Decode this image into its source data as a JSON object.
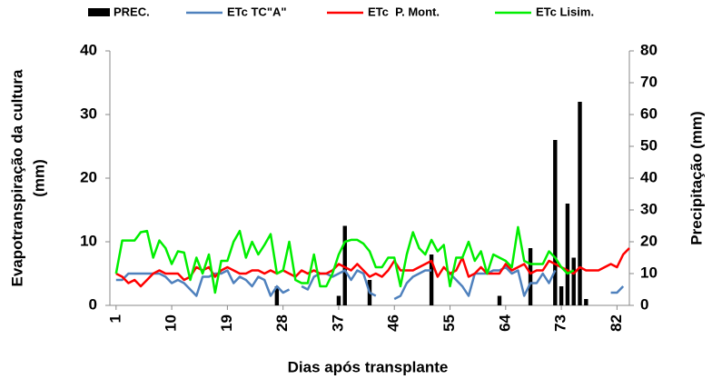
{
  "chart_data": {
    "type": "bar-line",
    "xlabel": "Dias após transplante",
    "ylabel": [
      "Evapotranspiração da cultura",
      "(mm)"
    ],
    "y2label": "Precipitação (mm)",
    "x": [
      1,
      2,
      3,
      4,
      5,
      6,
      7,
      8,
      9,
      10,
      11,
      12,
      13,
      14,
      15,
      16,
      17,
      18,
      19,
      20,
      21,
      22,
      23,
      24,
      25,
      26,
      27,
      28,
      29,
      30,
      31,
      32,
      33,
      34,
      35,
      36,
      37,
      38,
      39,
      40,
      41,
      42,
      43,
      44,
      45,
      46,
      47,
      48,
      49,
      50,
      51,
      52,
      53,
      54,
      55,
      56,
      57,
      58,
      59,
      60,
      61,
      62,
      63,
      64,
      65,
      66,
      67,
      68,
      69,
      70,
      71,
      72,
      73,
      74,
      75,
      76,
      77,
      78,
      79,
      80,
      81,
      82,
      83,
      84
    ],
    "xlim": [
      0,
      84
    ],
    "xticks": [
      1,
      10,
      19,
      28,
      37,
      46,
      55,
      64,
      73,
      82
    ],
    "ylim": [
      0,
      40
    ],
    "yticks": [
      0,
      10,
      20,
      30,
      40
    ],
    "y2lim": [
      0,
      80
    ],
    "y2ticks": [
      0,
      10,
      20,
      30,
      40,
      50,
      60,
      70,
      80
    ],
    "series": [
      {
        "name": "PREC.",
        "color": "#000000",
        "axis": "y2",
        "kind": "bar",
        "values": [
          null,
          null,
          null,
          null,
          null,
          null,
          null,
          null,
          null,
          null,
          null,
          null,
          null,
          null,
          null,
          null,
          null,
          null,
          null,
          null,
          null,
          null,
          null,
          null,
          null,
          null,
          6,
          null,
          null,
          null,
          null,
          null,
          null,
          null,
          null,
          null,
          3,
          25,
          null,
          null,
          null,
          8,
          null,
          null,
          null,
          null,
          null,
          null,
          null,
          null,
          null,
          16,
          null,
          null,
          null,
          null,
          null,
          null,
          null,
          null,
          null,
          null,
          3,
          null,
          null,
          null,
          null,
          18,
          null,
          null,
          null,
          52,
          6,
          32,
          15,
          64,
          2,
          null,
          null,
          null,
          null,
          null,
          null,
          null
        ]
      },
      {
        "name": "ETc TC\"A\"",
        "color": "#4f81bd",
        "kind": "line",
        "values": [
          4,
          4,
          5,
          5,
          5,
          5,
          5,
          5,
          4.5,
          3.5,
          4,
          3.5,
          2.5,
          1.5,
          4.5,
          4.5,
          5,
          5,
          5.5,
          3.5,
          4.5,
          4,
          3,
          4.5,
          4,
          1.5,
          3,
          2,
          2.5,
          null,
          3,
          2.5,
          4.5,
          5,
          5,
          4.5,
          5,
          5.5,
          4,
          5.5,
          5,
          2,
          1.5,
          null,
          null,
          1,
          1.5,
          3.5,
          4.5,
          5,
          5.5,
          5.5,
          null,
          null,
          5,
          4,
          3,
          1.5,
          5,
          5,
          5,
          5.5,
          5.5,
          6,
          5,
          5.5,
          1.5,
          3.5,
          3.5,
          5,
          3.5,
          5.5,
          null,
          3.5,
          null,
          null,
          null,
          null,
          null,
          null,
          2,
          2,
          3,
          null
        ]
      },
      {
        "name": "ETc  P. Mont.",
        "color": "#ff0000",
        "kind": "line",
        "values": [
          5,
          4.5,
          3.5,
          4,
          3,
          4,
          5,
          5.5,
          5,
          5,
          5,
          4,
          4.5,
          6,
          5.5,
          6,
          4.5,
          5.5,
          6,
          5.5,
          5,
          5,
          5.5,
          5.5,
          5,
          5.5,
          5,
          5.5,
          5,
          4.5,
          5.5,
          5,
          5.5,
          5,
          5,
          5.5,
          6.5,
          6,
          5.5,
          6.5,
          5.5,
          4.5,
          5,
          4.5,
          5.5,
          7,
          5.5,
          5.5,
          5.5,
          6,
          6.5,
          7,
          4.5,
          6,
          5,
          5.5,
          7.5,
          4.5,
          5,
          6,
          5,
          5,
          5,
          6.5,
          5.5,
          6,
          6.5,
          5,
          5.5,
          5.5,
          7,
          6.5,
          6,
          5.5,
          5,
          6,
          5.5,
          5.5,
          5.5,
          6,
          6.5,
          6,
          8,
          9
        ]
      },
      {
        "name": "ETc Lisim.",
        "color": "#00ee00",
        "kind": "line",
        "values": [
          5,
          10.2,
          10.2,
          10.2,
          11.5,
          11.7,
          7.5,
          10.2,
          9,
          6.5,
          8.5,
          8.3,
          4,
          7.5,
          5,
          8,
          2,
          7,
          7,
          10,
          11.7,
          7.5,
          10,
          8,
          9.5,
          11.2,
          5,
          5.5,
          10,
          4,
          3.5,
          3.5,
          8,
          3,
          3,
          5,
          8,
          10,
          10.3,
          10.3,
          9.7,
          8.5,
          6,
          6,
          7.5,
          7.5,
          3,
          8,
          11.5,
          9,
          8,
          10.3,
          8.5,
          9.5,
          3,
          7.5,
          7.5,
          10,
          7,
          8.5,
          5,
          8,
          7.5,
          7,
          6,
          12.3,
          7,
          6.5,
          6.5,
          6.5,
          8.5,
          7.5,
          6,
          5,
          5.5,
          null,
          null,
          null,
          null,
          null,
          null,
          null,
          null,
          null
        ]
      }
    ]
  }
}
